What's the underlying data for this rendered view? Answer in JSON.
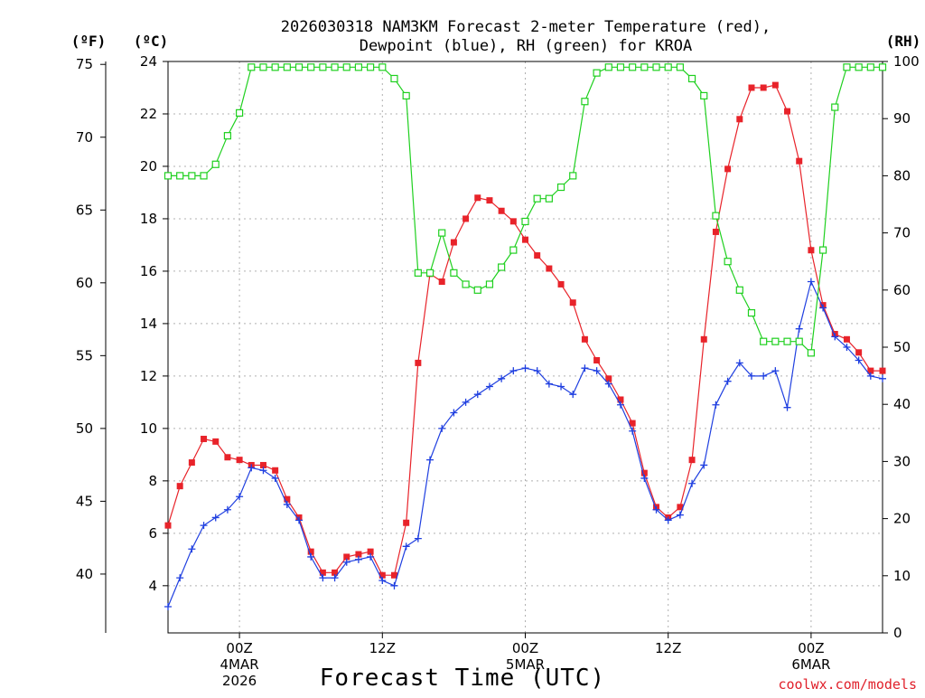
{
  "chart_data": {
    "type": "line",
    "title_line1": "2026030318 NAM3KM Forecast 2-meter Temperature (red),",
    "title_line2": "Dewpoint (blue), RH (green) for KROA",
    "xlabel": "Forecast Time (UTC)",
    "credit": "coolwx.com/models",
    "axes": {
      "fahrenheit": {
        "label": "(ºF)",
        "ticks": [
          40,
          45,
          50,
          55,
          60,
          65,
          70,
          75
        ]
      },
      "celsius": {
        "label": "(ºC)",
        "ticks": [
          4,
          6,
          8,
          10,
          12,
          14,
          16,
          18,
          20,
          22,
          24
        ],
        "ylim": [
          2.2,
          24
        ]
      },
      "rh": {
        "label": "(RH)",
        "ticks": [
          0,
          10,
          20,
          30,
          40,
          50,
          60,
          70,
          80,
          90,
          100
        ],
        "ylim": [
          0,
          100
        ]
      }
    },
    "x_hours_range": [
      0,
      60
    ],
    "x_ticks": [
      {
        "hour": 6,
        "line1": "00Z",
        "line2": "4MAR",
        "line3": "2026"
      },
      {
        "hour": 18,
        "line1": "12Z",
        "line2": "",
        "line3": ""
      },
      {
        "hour": 30,
        "line1": "00Z",
        "line2": "5MAR",
        "line3": ""
      },
      {
        "hour": 42,
        "line1": "12Z",
        "line2": "",
        "line3": ""
      },
      {
        "hour": 54,
        "line1": "00Z",
        "line2": "6MAR",
        "line3": ""
      }
    ],
    "hours": [
      0,
      1,
      2,
      3,
      4,
      5,
      6,
      7,
      8,
      9,
      10,
      11,
      12,
      13,
      14,
      15,
      16,
      17,
      18,
      19,
      20,
      21,
      22,
      23,
      24,
      25,
      26,
      27,
      28,
      29,
      30,
      31,
      32,
      33,
      34,
      35,
      36,
      37,
      38,
      39,
      40,
      41,
      42,
      43,
      44,
      45,
      46,
      47,
      48,
      49,
      50,
      51,
      52,
      53,
      54,
      55,
      56,
      57,
      58,
      59,
      60
    ],
    "series": [
      {
        "name": "Temperature (°C)",
        "color": "#e8232a",
        "marker": "filled-square",
        "values": [
          6.3,
          7.8,
          8.7,
          9.6,
          9.5,
          8.9,
          8.8,
          8.6,
          8.6,
          8.4,
          7.3,
          6.6,
          5.3,
          4.5,
          4.5,
          5.1,
          5.2,
          5.3,
          4.4,
          4.4,
          6.4,
          12.5,
          15.9,
          15.6,
          17.1,
          18.0,
          18.8,
          18.7,
          18.3,
          17.9,
          17.2,
          16.6,
          16.1,
          15.5,
          14.8,
          13.4,
          12.6,
          11.9,
          11.1,
          10.2,
          8.3,
          7.0,
          6.6,
          7.0,
          8.8,
          13.4,
          17.5,
          19.9,
          21.8,
          23.0,
          23.0,
          23.1,
          22.1,
          20.2,
          16.8,
          14.7,
          13.6,
          13.4,
          12.9,
          12.2,
          12.2
        ]
      },
      {
        "name": "Dewpoint (°C)",
        "color": "#1f3fe0",
        "marker": "plus",
        "values": [
          3.2,
          4.3,
          5.4,
          6.3,
          6.6,
          6.9,
          7.4,
          8.5,
          8.4,
          8.1,
          7.1,
          6.5,
          5.1,
          4.3,
          4.3,
          4.9,
          5.0,
          5.1,
          4.2,
          4.0,
          5.5,
          5.8,
          8.8,
          10.0,
          10.6,
          11.0,
          11.3,
          11.6,
          11.9,
          12.2,
          12.3,
          12.2,
          11.7,
          11.6,
          11.3,
          12.3,
          12.2,
          11.7,
          10.9,
          9.9,
          8.1,
          6.9,
          6.5,
          6.7,
          7.9,
          8.6,
          10.9,
          11.8,
          12.5,
          12.0,
          12.0,
          12.2,
          10.8,
          13.8,
          15.6,
          14.6,
          13.5,
          13.1,
          12.6,
          12.0,
          11.9
        ]
      },
      {
        "name": "RH (%)",
        "color": "#1fd01f",
        "marker": "open-square",
        "values": [
          80,
          80,
          80,
          80,
          82,
          87,
          91,
          99,
          99,
          99,
          99,
          99,
          99,
          99,
          99,
          99,
          99,
          99,
          99,
          97,
          94,
          63,
          63,
          70,
          63,
          61,
          60,
          61,
          64,
          67,
          72,
          76,
          76,
          78,
          80,
          93,
          98,
          99,
          99,
          99,
          99,
          99,
          99,
          99,
          97,
          94,
          73,
          65,
          60,
          56,
          51,
          51,
          51,
          51,
          49,
          67,
          92,
          99,
          99,
          99,
          99
        ]
      }
    ]
  }
}
